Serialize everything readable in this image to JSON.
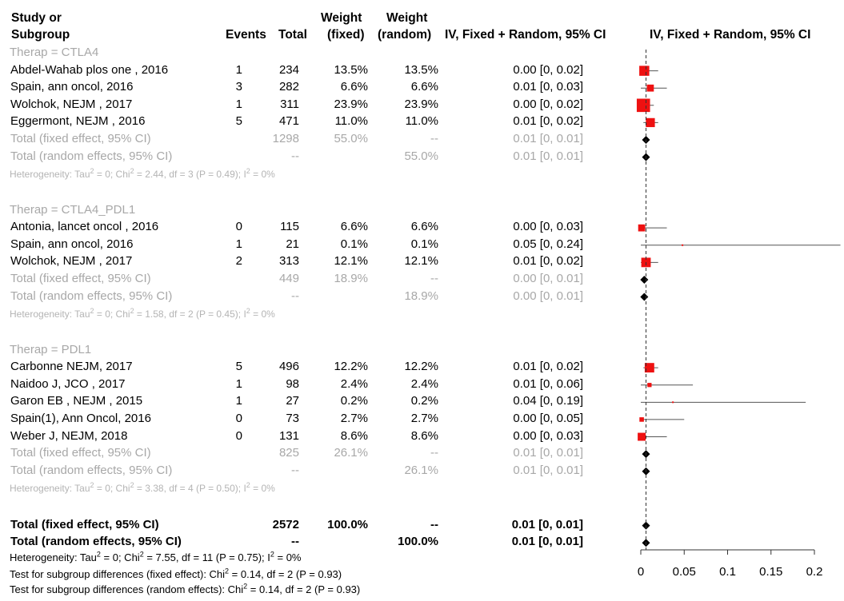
{
  "header": {
    "study_line1": "Study or",
    "study_line2": "Subgroup",
    "events": "Events",
    "total": "Total",
    "weight_fixed_1": "Weight",
    "weight_fixed_2": "(fixed)",
    "weight_random_1": "Weight",
    "weight_random_2": "(random)",
    "ci_label": "IV, Fixed + Random, 95% CI",
    "plot_label": "IV, Fixed + Random, 95% CI"
  },
  "subgroups": [
    {
      "label": "Therap = CTLA4",
      "studies": [
        {
          "name": "Abdel-Wahab plos one , 2016",
          "events": "1",
          "total": "234",
          "wf": "13.5%",
          "wr": "13.5%",
          "ci": "0.00 [0, 0.02]",
          "est": 0.004,
          "lo": 0,
          "hi": 0.02,
          "w": 13.5
        },
        {
          "name": "Spain, ann oncol, 2016",
          "events": "3",
          "total": "282",
          "wf": "6.6%",
          "wr": "6.6%",
          "ci": "0.01 [0, 0.03]",
          "est": 0.011,
          "lo": 0.0,
          "hi": 0.03,
          "w": 6.6
        },
        {
          "name": "Wolchok, NEJM , 2017",
          "events": "1",
          "total": "311",
          "wf": "23.9%",
          "wr": "23.9%",
          "ci": "0.00 [0, 0.02]",
          "est": 0.003,
          "lo": 0,
          "hi": 0.015,
          "w": 23.9
        },
        {
          "name": "Eggermont, NEJM , 2016",
          "events": "5",
          "total": "471",
          "wf": "11.0%",
          "wr": "11.0%",
          "ci": "0.01 [0, 0.02]",
          "est": 0.011,
          "lo": 0.003,
          "hi": 0.02,
          "w": 11.0
        }
      ],
      "fixed": {
        "label": "Total (fixed effect, 95% CI)",
        "total": "1298",
        "wf": "55.0%",
        "wr": "--",
        "ci": "0.01 [0, 0.01]",
        "est": 0.006
      },
      "random": {
        "label": "Total (random effects, 95% CI)",
        "total": "--",
        "wf": "",
        "wr": "55.0%",
        "ci": "0.01 [0, 0.01]",
        "est": 0.006
      },
      "het": {
        "a": "Heterogeneity: Tau",
        "b": " = 0; Chi",
        "c": " = 2.44, df = 3 (P = 0.49); I",
        "d": " = 0%"
      }
    },
    {
      "label": "Therap = CTLA4_PDL1",
      "studies": [
        {
          "name": "Antonia, lancet oncol , 2016",
          "events": "0",
          "total": "115",
          "wf": "6.6%",
          "wr": "6.6%",
          "ci": "0.00 [0, 0.03]",
          "est": 0.001,
          "lo": 0,
          "hi": 0.03,
          "w": 6.6
        },
        {
          "name": "Spain, ann oncol, 2016",
          "events": "1",
          "total": "21",
          "wf": "0.1%",
          "wr": "0.1%",
          "ci": "0.05 [0, 0.24]",
          "est": 0.048,
          "lo": 0,
          "hi": 0.24,
          "w": 0.1
        },
        {
          "name": "Wolchok, NEJM , 2017",
          "events": "2",
          "total": "313",
          "wf": "12.1%",
          "wr": "12.1%",
          "ci": "0.01 [0, 0.02]",
          "est": 0.006,
          "lo": 0,
          "hi": 0.02,
          "w": 12.1
        }
      ],
      "fixed": {
        "label": "Total (fixed effect, 95% CI)",
        "total": "449",
        "wf": "18.9%",
        "wr": "--",
        "ci": "0.00 [0, 0.01]",
        "est": 0.004
      },
      "random": {
        "label": "Total (random effects, 95% CI)",
        "total": "--",
        "wf": "",
        "wr": "18.9%",
        "ci": "0.00 [0, 0.01]",
        "est": 0.004
      },
      "het": {
        "a": "Heterogeneity: Tau",
        "b": " = 0; Chi",
        "c": " = 1.58, df = 2 (P = 0.45); I",
        "d": " = 0%"
      }
    },
    {
      "label": "Therap = PDL1",
      "studies": [
        {
          "name": "Carbonne NEJM, 2017",
          "events": "5",
          "total": "496",
          "wf": "12.2%",
          "wr": "12.2%",
          "ci": "0.01 [0, 0.02]",
          "est": 0.01,
          "lo": 0.003,
          "hi": 0.02,
          "w": 12.2
        },
        {
          "name": "Naidoo J, JCO , 2017",
          "events": "1",
          "total": "98",
          "wf": "2.4%",
          "wr": "2.4%",
          "ci": "0.01 [0, 0.06]",
          "est": 0.01,
          "lo": 0,
          "hi": 0.06,
          "w": 2.4
        },
        {
          "name": "Garon EB , NEJM , 2015",
          "events": "1",
          "total": "27",
          "wf": "0.2%",
          "wr": "0.2%",
          "ci": "0.04 [0, 0.19]",
          "est": 0.037,
          "lo": 0,
          "hi": 0.19,
          "w": 0.2
        },
        {
          "name": "Spain(1), Ann Oncol, 2016",
          "events": "0",
          "total": "73",
          "wf": "2.7%",
          "wr": "2.7%",
          "ci": "0.00 [0, 0.05]",
          "est": 0.001,
          "lo": 0,
          "hi": 0.05,
          "w": 2.7
        },
        {
          "name": "Weber J, NEJM, 2018",
          "events": "0",
          "total": "131",
          "wf": "8.6%",
          "wr": "8.6%",
          "ci": "0.00 [0, 0.03]",
          "est": 0.001,
          "lo": 0,
          "hi": 0.03,
          "w": 8.6
        }
      ],
      "fixed": {
        "label": "Total (fixed effect, 95% CI)",
        "total": "825",
        "wf": "26.1%",
        "wr": "--",
        "ci": "0.01 [0, 0.01]",
        "est": 0.006
      },
      "random": {
        "label": "Total (random effects, 95% CI)",
        "total": "--",
        "wf": "",
        "wr": "26.1%",
        "ci": "0.01 [0, 0.01]",
        "est": 0.006
      },
      "het": {
        "a": "Heterogeneity: Tau",
        "b": " = 0; Chi",
        "c": " = 3.38, df = 4 (P = 0.50); I",
        "d": " = 0%"
      }
    }
  ],
  "overall": {
    "fixed": {
      "label": "Total (fixed effect, 95% CI)",
      "total": "2572",
      "wf": "100.0%",
      "wr": "--",
      "ci": "0.01 [0, 0.01]",
      "est": 0.006
    },
    "random": {
      "label": "Total (random effects, 95% CI)",
      "total": "--",
      "wf": "",
      "wr": "100.0%",
      "ci": "0.01 [0, 0.01]",
      "est": 0.006
    },
    "het": {
      "a": "Heterogeneity: Tau",
      "b": " = 0; Chi",
      "c": " = 7.55, df = 11 (P = 0.75); I",
      "d": " = 0%"
    },
    "test_fixed": {
      "a": "Test for subgroup differences (fixed effect): Chi",
      "b": " = 0.14, df = 2 (P = 0.93)"
    },
    "test_random": {
      "a": "Test for subgroup differences (random effects): Chi",
      "b": " = 0.14, df = 2 (P = 0.93)"
    }
  },
  "chart_data": {
    "type": "forest",
    "xlim": [
      0,
      0.2
    ],
    "xticks": [
      "0",
      "0.05",
      "0.1",
      "0.15",
      "0.2"
    ],
    "xtick_values": [
      0,
      0.05,
      0.1,
      0.15,
      0.2
    ],
    "reference_line": 0.006,
    "colors": {
      "square": "#ee1111",
      "ci": "#555555",
      "diamond": "#000000",
      "grid": "#333333",
      "subtext": "#a8a8a8"
    }
  }
}
